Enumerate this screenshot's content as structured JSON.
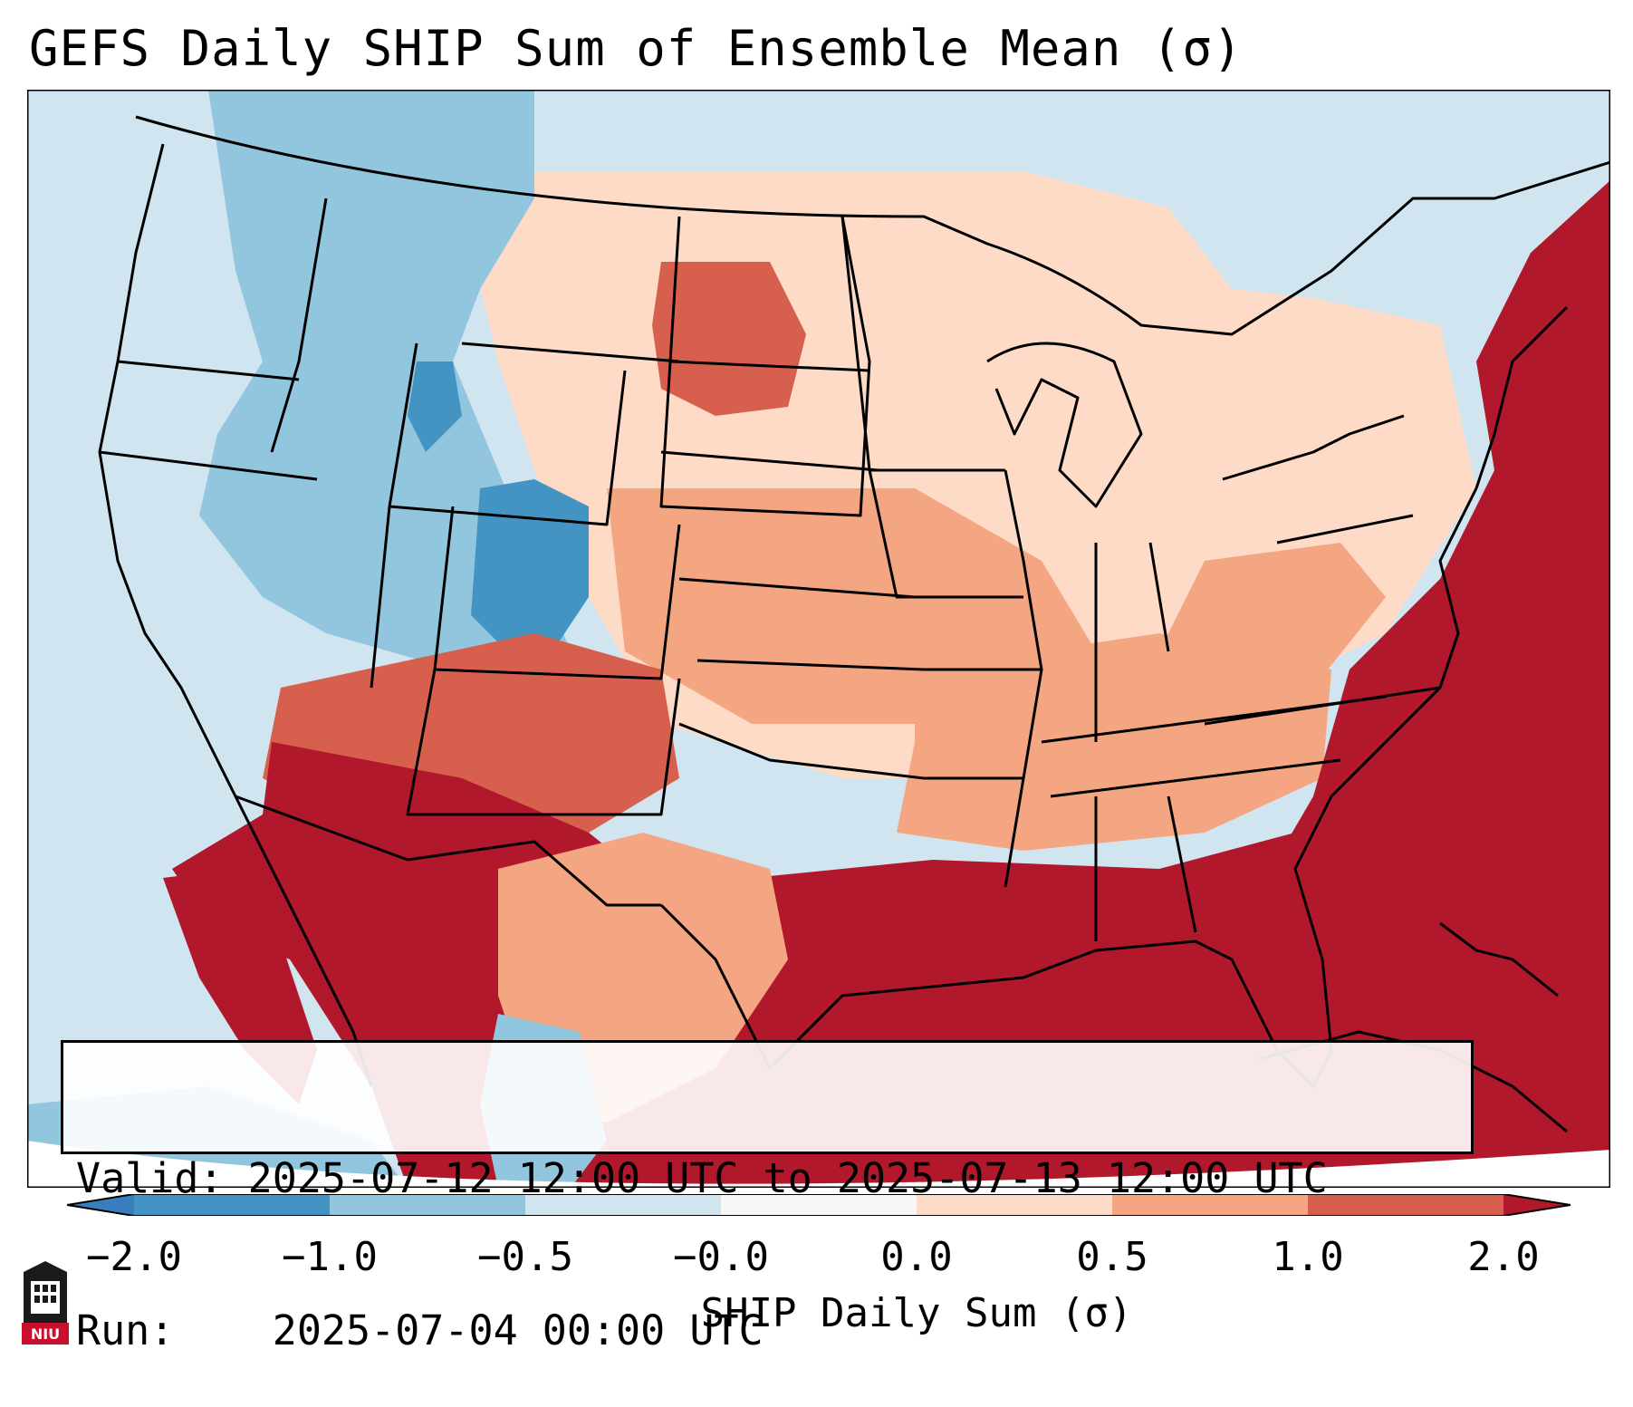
{
  "title": "GEFS Daily SHIP Sum of Ensemble Mean (σ)",
  "info": {
    "valid_label": "Valid:",
    "valid_value": "2025-07-12 12:00 UTC to 2025-07-13 12:00 UTC",
    "run_label": "Run:",
    "run_value": "2025-07-04 00:00 UTC"
  },
  "colorbar": {
    "label": "SHIP Daily Sum (σ)",
    "ticks": [
      "−2.0",
      "−1.0",
      "−0.5",
      "−0.0",
      "0.0",
      "0.5",
      "1.0",
      "2.0"
    ],
    "colors": {
      "below": "#3a7dbf",
      "bin1": "#4393c3",
      "bin2": "#92c5de",
      "bin3": "#d1e5f0",
      "bin4": "#f7f7f7",
      "bin5": "#fddbc7",
      "bin6": "#f4a582",
      "bin7": "#d6604d",
      "above": "#b2182b"
    }
  },
  "logo": {
    "text": "NIU"
  },
  "map": {
    "colors": {
      "ocean_blue": "#d1e5f0",
      "land_default": "#fddbc7",
      "strong_red": "#b2182b",
      "red": "#d6604d",
      "salmon": "#f4a582",
      "mid_blue": "#92c5de",
      "deep_blue": "#4393c3",
      "outline": "#000000"
    }
  }
}
